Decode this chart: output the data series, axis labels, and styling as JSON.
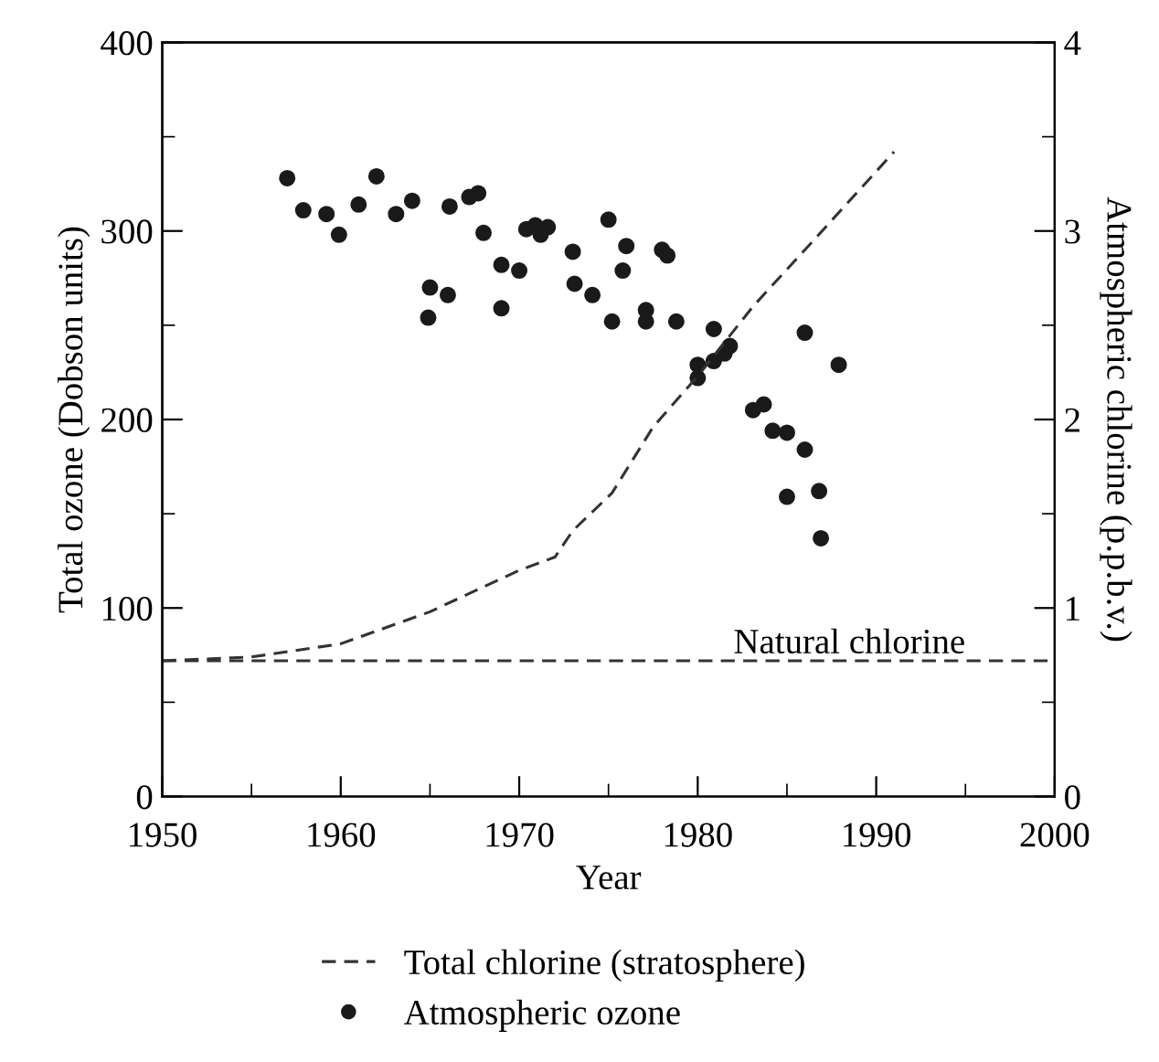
{
  "chart_data": {
    "type": "scatter",
    "xlabel": "Year",
    "ylabel": "Total ozone (Dobson units)",
    "y2label": "Atmospheric chlorine (p.p.b.v.)",
    "xlim": [
      1950,
      2000
    ],
    "xticks": [
      1950,
      1960,
      1970,
      1980,
      1990,
      2000
    ],
    "ylim": [
      0,
      400
    ],
    "yticks": [
      0,
      100,
      200,
      300,
      400
    ],
    "y2lim": [
      0,
      4
    ],
    "y2ticks": [
      0,
      1,
      2,
      3,
      4
    ],
    "grid": false,
    "legend": "bottom",
    "ref_lines": [
      {
        "axis": "y2",
        "value": 0.72,
        "label": "Natural chlorine",
        "color": "#333333",
        "line_style": "dashed"
      }
    ],
    "series": [
      {
        "name": "Total chlorine (stratosphere)",
        "type": "line",
        "axis": "y2",
        "color": "#333333",
        "line_style": "dashed",
        "marker": "none",
        "x": [
          1950,
          1955,
          1960,
          1965,
          1970,
          1972,
          1973,
          1975.2,
          1977.5,
          1980,
          1983.1,
          1986.2,
          1991
        ],
        "values": [
          0.72,
          0.74,
          0.81,
          0.98,
          1.2,
          1.27,
          1.41,
          1.61,
          1.96,
          2.23,
          2.6,
          2.92,
          3.42
        ]
      },
      {
        "name": "Atmospheric ozone",
        "color": "#1a1a1a",
        "marker": "circle",
        "x": [
          1957.0,
          1957.9,
          1959.2,
          1959.9,
          1961.0,
          1962.0,
          1963.1,
          1964.0,
          1965.0,
          1966.0,
          1964.9,
          1966.1,
          1967.2,
          1967.7,
          1968.0,
          1970.4,
          1970.9,
          1971.2,
          1971.6,
          1969.0,
          1970.0,
          1969.0,
          1973.0,
          1973.1,
          1974.1,
          1975.0,
          1976.0,
          1975.8,
          1975.2,
          1977.1,
          1977.1,
          1978.0,
          1978.3,
          1978.8,
          1980.9,
          1980.0,
          1980.0,
          1980.9,
          1981.5,
          1981.8,
          1986.0,
          1987.9,
          1983.1,
          1983.7,
          1984.2,
          1985.0,
          1986.0,
          1985.0,
          1986.8,
          1986.9
        ],
        "values": [
          328,
          311,
          309,
          298,
          314,
          329,
          309,
          316,
          270,
          266,
          254,
          313,
          318,
          320,
          299,
          301,
          303,
          298,
          302,
          282,
          279,
          259,
          289,
          272,
          266,
          306,
          292,
          279,
          252,
          258,
          252,
          290,
          287,
          252,
          248,
          229,
          222,
          231,
          235,
          239,
          246,
          229,
          205,
          208,
          194,
          193,
          184,
          159,
          162,
          137
        ]
      }
    ]
  }
}
